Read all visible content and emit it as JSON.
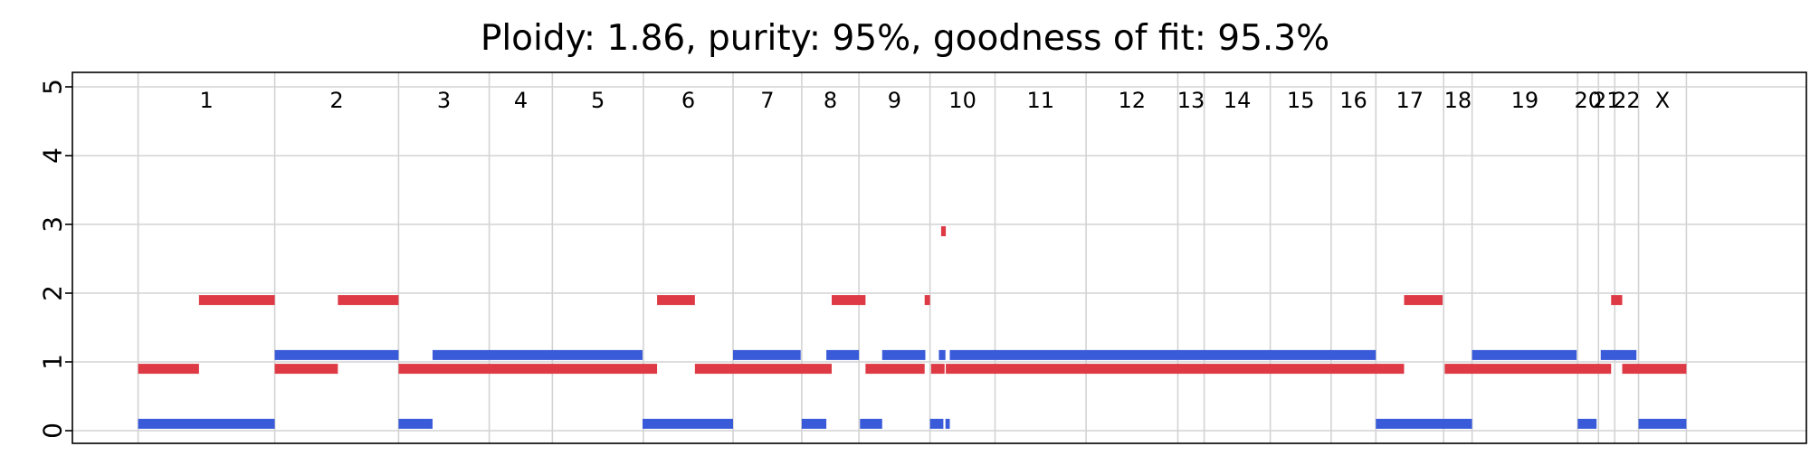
{
  "chart_data": {
    "type": "segment",
    "title": "Ploidy: 1.86, purity: 95%, goodness of fit: 95.3%",
    "xlabel": "",
    "ylabel": "",
    "ylim": [
      0,
      5
    ],
    "yticks": [
      0,
      1,
      2,
      3,
      4,
      5
    ],
    "grid": true,
    "xlim": [
      0,
      100
    ],
    "chromosomes": [
      {
        "label": "1",
        "start": 3.79,
        "end": 11.67
      },
      {
        "label": "2",
        "start": 11.67,
        "end": 18.81
      },
      {
        "label": "3",
        "start": 18.81,
        "end": 24.04
      },
      {
        "label": "4",
        "start": 24.04,
        "end": 27.68
      },
      {
        "label": "5",
        "start": 27.68,
        "end": 32.93
      },
      {
        "label": "6",
        "start": 32.93,
        "end": 38.1
      },
      {
        "label": "7",
        "start": 38.1,
        "end": 42.06
      },
      {
        "label": "8",
        "start": 42.06,
        "end": 45.36
      },
      {
        "label": "9",
        "start": 45.36,
        "end": 49.46
      },
      {
        "label": "10",
        "start": 49.46,
        "end": 53.21
      },
      {
        "label": "11",
        "start": 53.21,
        "end": 58.46
      },
      {
        "label": "12",
        "start": 58.46,
        "end": 63.75
      },
      {
        "label": "13",
        "start": 63.75,
        "end": 65.27
      },
      {
        "label": "14",
        "start": 65.27,
        "end": 69.08
      },
      {
        "label": "15",
        "start": 69.08,
        "end": 72.59
      },
      {
        "label": "16",
        "start": 72.59,
        "end": 75.17
      },
      {
        "label": "17",
        "start": 75.17,
        "end": 79.08
      },
      {
        "label": "18",
        "start": 79.08,
        "end": 80.72
      },
      {
        "label": "19",
        "start": 80.72,
        "end": 86.81
      },
      {
        "label": "20",
        "start": 86.81,
        "end": 88.01
      },
      {
        "label": "21",
        "start": 88.01,
        "end": 88.95
      },
      {
        "label": "22",
        "start": 88.95,
        "end": 90.32
      },
      {
        "label": "X",
        "start": 90.32,
        "end": 93.08
      }
    ],
    "series": [
      {
        "name": "",
        "color": "#3a5bd9",
        "segments": [
          {
            "start": 3.79,
            "end": 11.67,
            "value": 0.1
          },
          {
            "start": 11.67,
            "end": 18.81,
            "value": 1.1
          },
          {
            "start": 18.81,
            "end": 20.77,
            "value": 0.1
          },
          {
            "start": 20.77,
            "end": 32.88,
            "value": 1.1
          },
          {
            "start": 32.88,
            "end": 38.1,
            "value": 0.1
          },
          {
            "start": 38.1,
            "end": 42.0,
            "value": 1.1
          },
          {
            "start": 42.06,
            "end": 43.48,
            "value": 0.1
          },
          {
            "start": 43.48,
            "end": 45.36,
            "value": 1.1
          },
          {
            "start": 45.42,
            "end": 46.7,
            "value": 0.1
          },
          {
            "start": 46.7,
            "end": 49.19,
            "value": 1.1
          },
          {
            "start": 49.46,
            "end": 50.23,
            "value": 0.1
          },
          {
            "start": 50.35,
            "end": 50.6,
            "value": 0.1
          },
          {
            "start": 49.97,
            "end": 50.35,
            "value": 1.1
          },
          {
            "start": 50.6,
            "end": 75.17,
            "value": 1.1
          },
          {
            "start": 75.17,
            "end": 80.72,
            "value": 0.1
          },
          {
            "start": 80.72,
            "end": 86.75,
            "value": 1.1
          },
          {
            "start": 86.81,
            "end": 87.9,
            "value": 0.1
          },
          {
            "start": 88.14,
            "end": 90.2,
            "value": 1.1
          },
          {
            "start": 90.32,
            "end": 93.08,
            "value": 0.1
          }
        ]
      },
      {
        "name": "",
        "color": "#de3a45",
        "segments": [
          {
            "start": 3.79,
            "end": 7.3,
            "value": 0.9
          },
          {
            "start": 7.3,
            "end": 11.67,
            "value": 1.9
          },
          {
            "start": 11.67,
            "end": 15.31,
            "value": 0.9
          },
          {
            "start": 15.31,
            "end": 18.81,
            "value": 1.9
          },
          {
            "start": 18.81,
            "end": 33.72,
            "value": 0.9
          },
          {
            "start": 33.72,
            "end": 35.9,
            "value": 1.9
          },
          {
            "start": 35.9,
            "end": 43.79,
            "value": 0.9
          },
          {
            "start": 43.79,
            "end": 45.74,
            "value": 1.9
          },
          {
            "start": 45.74,
            "end": 49.15,
            "value": 0.9
          },
          {
            "start": 49.15,
            "end": 49.46,
            "value": 1.9
          },
          {
            "start": 49.52,
            "end": 50.3,
            "value": 0.9
          },
          {
            "start": 50.1,
            "end": 50.37,
            "value": 2.9
          },
          {
            "start": 50.37,
            "end": 76.8,
            "value": 0.9
          },
          {
            "start": 76.8,
            "end": 79.02,
            "value": 1.9
          },
          {
            "start": 79.14,
            "end": 88.74,
            "value": 0.9
          },
          {
            "start": 88.74,
            "end": 89.38,
            "value": 1.9
          },
          {
            "start": 89.38,
            "end": 93.08,
            "value": 0.9
          }
        ]
      }
    ]
  }
}
